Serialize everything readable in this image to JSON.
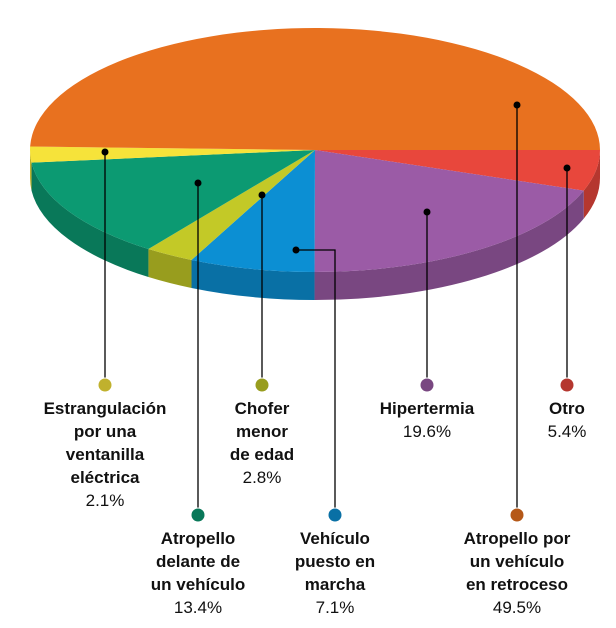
{
  "chart_data": {
    "type": "pie",
    "categories": [
      "Otro",
      "Hipertermia",
      "Vehículo\npuesto en\nmarcha",
      "Chofer\nmenor\nde edad",
      "Atropello\ndelante de\nun vehículo",
      "Estrangulación\npor una\nventanilla\neléctrica",
      "Atropello por\nun vehículo\nen retroceso"
    ],
    "values": [
      5.4,
      19.6,
      7.1,
      2.8,
      13.4,
      2.1,
      49.5
    ],
    "value_labels": [
      "5.4%",
      "19.6%",
      "7.1%",
      "2.8%",
      "13.4%",
      "2.1%",
      "49.5%"
    ],
    "colors": [
      "#e8473c",
      "#9b5ba6",
      "#0c8fd3",
      "#c3c927",
      "#0c9a72",
      "#f6e33a",
      "#e8711f"
    ]
  }
}
